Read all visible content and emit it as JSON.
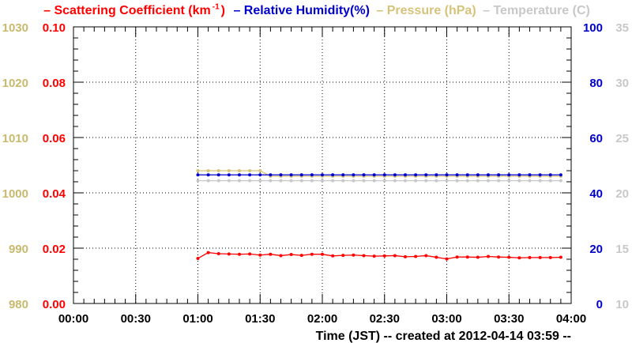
{
  "legend": {
    "items": [
      {
        "label": "– Scattering Coefficient (km",
        "sup": "-1",
        "tail": ")",
        "color": "#ff0000"
      },
      {
        "label": "– Relative Humidity(%)",
        "color": "#0000cc"
      },
      {
        "label": "– Pressure (hPa)",
        "color": "#d6c37a"
      },
      {
        "label": "– Temperature (C)",
        "color": "#c8c8c8"
      }
    ]
  },
  "chart_data": {
    "type": "line",
    "xlabel": "Time (JST)  -- created at 2012-04-14 03:59 --",
    "x_ticks": [
      "00:00",
      "00:30",
      "01:00",
      "01:30",
      "02:00",
      "02:30",
      "03:00",
      "03:30",
      "04:00"
    ],
    "xlim": [
      "00:00",
      "04:00"
    ],
    "axes": {
      "pressure": {
        "ticks": [
          "1030",
          "1020",
          "1010",
          "1000",
          "990",
          "980"
        ],
        "range": [
          980,
          1030
        ],
        "color": "#c8b96e"
      },
      "scattering": {
        "ticks": [
          "0.10",
          "0.08",
          "0.06",
          "0.04",
          "0.02",
          "0.00"
        ],
        "range": [
          0,
          0.1
        ],
        "color": "#ff0000"
      },
      "humidity": {
        "ticks": [
          "100",
          "80",
          "60",
          "40",
          "20",
          "0"
        ],
        "range": [
          0,
          100
        ],
        "color": "#0000cc"
      },
      "temperature": {
        "ticks": [
          "35",
          "30",
          "25",
          "20",
          "15",
          "10"
        ],
        "range": [
          10,
          35
        ],
        "color": "#c8c8c8"
      }
    },
    "grid": true,
    "series": [
      {
        "name": "Scattering Coefficient",
        "axis": "scattering",
        "color": "#ff0000",
        "x": [
          "01:00",
          "01:05",
          "01:10",
          "01:15",
          "01:20",
          "01:25",
          "01:30",
          "01:35",
          "01:40",
          "01:45",
          "01:50",
          "01:55",
          "02:00",
          "02:05",
          "02:10",
          "02:15",
          "02:20",
          "02:25",
          "02:30",
          "02:35",
          "02:40",
          "02:45",
          "02:50",
          "02:55",
          "03:00",
          "03:05",
          "03:10",
          "03:15",
          "03:20",
          "03:25",
          "03:30",
          "03:35",
          "03:40",
          "03:45",
          "03:50",
          "03:55"
        ],
        "values": [
          0.0163,
          0.0184,
          0.018,
          0.0179,
          0.0178,
          0.0179,
          0.0175,
          0.0178,
          0.0173,
          0.0177,
          0.0174,
          0.0178,
          0.0178,
          0.0172,
          0.0174,
          0.0175,
          0.0173,
          0.0171,
          0.0172,
          0.0173,
          0.0169,
          0.017,
          0.0173,
          0.0167,
          0.0161,
          0.0168,
          0.0168,
          0.0167,
          0.017,
          0.0168,
          0.0167,
          0.0165,
          0.0166,
          0.0166,
          0.0166,
          0.0167
        ]
      },
      {
        "name": "Relative Humidity",
        "axis": "humidity",
        "color": "#0000cc",
        "x": [
          "01:00",
          "01:05",
          "01:10",
          "01:15",
          "01:20",
          "01:25",
          "01:30",
          "01:35",
          "01:40",
          "01:45",
          "01:50",
          "01:55",
          "02:00",
          "02:05",
          "02:10",
          "02:15",
          "02:20",
          "02:25",
          "02:30",
          "02:35",
          "02:40",
          "02:45",
          "02:50",
          "02:55",
          "03:00",
          "03:05",
          "03:10",
          "03:15",
          "03:20",
          "03:25",
          "03:30",
          "03:35",
          "03:40",
          "03:45",
          "03:50",
          "03:55"
        ],
        "values": [
          46.5,
          46.5,
          46.5,
          46.5,
          46.5,
          46.5,
          46.5,
          46.5,
          46.5,
          46.5,
          46.5,
          46.5,
          46.5,
          46.5,
          46.5,
          46.5,
          46.5,
          46.5,
          46.5,
          46.5,
          46.5,
          46.5,
          46.5,
          46.5,
          46.5,
          46.5,
          46.5,
          46.5,
          46.5,
          46.5,
          46.5,
          46.5,
          46.5,
          46.5,
          46.5,
          46.5
        ]
      },
      {
        "name": "Pressure",
        "axis": "pressure",
        "color": "#d6c37a",
        "x": [
          "01:00",
          "01:05",
          "01:10",
          "01:15",
          "01:20",
          "01:25",
          "01:30",
          "01:35",
          "01:40",
          "01:45",
          "01:50",
          "01:55",
          "02:00",
          "02:05",
          "02:10",
          "02:15",
          "02:20",
          "02:25",
          "02:30",
          "02:35",
          "02:40",
          "02:45",
          "02:50",
          "02:55",
          "03:00",
          "03:05",
          "03:10",
          "03:15",
          "03:20",
          "03:25",
          "03:30",
          "03:35",
          "03:40",
          "03:45",
          "03:50",
          "03:55"
        ],
        "values": [
          1004,
          1004,
          1004,
          1004,
          1004,
          1004,
          1004,
          1003,
          1003,
          1003,
          1003,
          1003,
          1003,
          1003,
          1003,
          1003,
          1003,
          1003,
          1003,
          1003,
          1003,
          1003,
          1003,
          1003,
          1003,
          1003,
          1003,
          1003,
          1003,
          1003,
          1003,
          1003,
          1003,
          1003,
          1003,
          1003
        ]
      },
      {
        "name": "Temperature",
        "axis": "temperature",
        "color": "#c8c8c8",
        "x": [
          "01:00",
          "01:05",
          "01:10",
          "01:15",
          "01:20",
          "01:25",
          "01:30",
          "01:35",
          "01:40",
          "01:45",
          "01:50",
          "01:55",
          "02:00",
          "02:05",
          "02:10",
          "02:15",
          "02:20",
          "02:25",
          "02:30",
          "02:35",
          "02:40",
          "02:45",
          "02:50",
          "02:55",
          "03:00",
          "03:05",
          "03:10",
          "03:15",
          "03:20",
          "03:25",
          "03:30",
          "03:35",
          "03:40",
          "03:45",
          "03:50",
          "03:55"
        ],
        "values": [
          21.1,
          21.1,
          21.1,
          21.1,
          21.1,
          21.1,
          21.1,
          21.1,
          21.1,
          21.1,
          21.1,
          21.1,
          21.1,
          21.1,
          21.1,
          21.1,
          21.1,
          21.1,
          21.1,
          21.1,
          21.1,
          21.1,
          21.1,
          21.1,
          21.1,
          21.1,
          21.1,
          21.1,
          21.1,
          21.1,
          21.1,
          21.1,
          21.1,
          21.1,
          21.1,
          21.1
        ]
      }
    ]
  }
}
